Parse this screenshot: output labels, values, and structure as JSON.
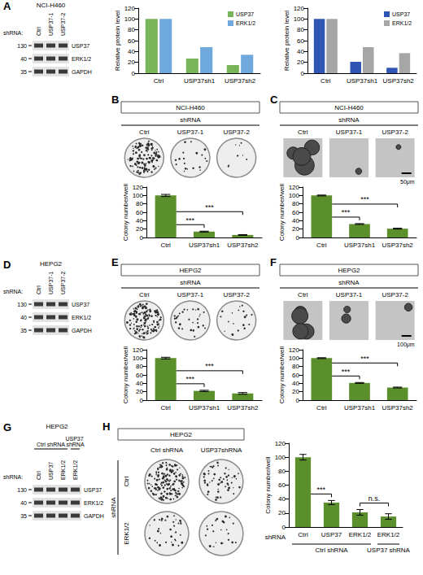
{
  "figure": {
    "blots": [
      {
        "label": "A",
        "title": "NCI-H460",
        "lane_header": "shRNA:",
        "lanes": [
          "Ctrl",
          "USP37-1",
          "USP37-2"
        ],
        "bands": [
          "USP37",
          "ERK1/2",
          "GAPDH"
        ],
        "markers": [
          130,
          40,
          35
        ]
      },
      {
        "label": "D",
        "title": "HEPG2",
        "lane_header": "shRNA:",
        "lanes": [
          "Ctrl",
          "USP37-1",
          "USP37-2"
        ],
        "bands": [
          "USP37",
          "ERK1/2",
          "GAPDH"
        ],
        "markers": [
          130,
          40,
          35
        ]
      },
      {
        "label": "G",
        "title": "HEPG2",
        "lane_header": "shRNA:",
        "groups": [
          {
            "label": "Ctrl shRNA",
            "lanes": [
              "Ctrl",
              "USP37",
              "ERK1/2"
            ]
          },
          {
            "label": "USP37 shRNA",
            "lanes": [
              "ERK1/2"
            ]
          }
        ],
        "bands": [
          "USP37",
          "ERK1/2",
          "GAPDH"
        ],
        "markers": [
          130,
          40,
          35
        ]
      }
    ],
    "images": [
      {
        "label": "B",
        "title": "NCI-H460",
        "header": "shRNA",
        "lanes": [
          "Ctrl",
          "USP37-1",
          "USP37-2"
        ],
        "kind": "plate"
      },
      {
        "label": "C",
        "title": "NCI-H460",
        "header": "shRNA",
        "lanes": [
          "Ctrl",
          "USP37-1",
          "USP37-2"
        ],
        "kind": "soft_agar",
        "scale_bar": "50μm"
      },
      {
        "label": "E",
        "title": "HEPG2",
        "header": "shRNA",
        "lanes": [
          "Ctrl",
          "USP37-1",
          "USP37-2"
        ],
        "kind": "plate"
      },
      {
        "label": "F",
        "title": "HEPG2",
        "header": "shRNA",
        "lanes": [
          "Ctrl",
          "USP37-1",
          "USP37-2"
        ],
        "kind": "soft_agar",
        "scale_bar": "100μm"
      },
      {
        "label": "H",
        "title": "HEPG2",
        "columns": [
          "Ctrl shRNA",
          "USP37shRNA"
        ],
        "row_header": "shRNA",
        "rows": [
          "Ctrl",
          "ERK1/2"
        ],
        "kind": "plate"
      }
    ]
  },
  "chart_data": [
    {
      "type": "bar",
      "categories": [
        "Ctrl",
        "USP37sh1",
        "USP37sh2"
      ],
      "series": [
        {
          "name": "USP37",
          "color": "#78b45a",
          "values": [
            100,
            27,
            15
          ]
        },
        {
          "name": "ERK1/2",
          "color": "#6fa8dc",
          "values": [
            100,
            48,
            34
          ]
        }
      ],
      "ylabel": "Relative protein level",
      "ylim": [
        0,
        120
      ],
      "yticks": [
        0,
        20,
        40,
        60,
        80,
        100,
        120
      ],
      "grid": false,
      "legend": "top-right"
    },
    {
      "type": "bar",
      "categories": [
        "Ctrl",
        "USP37sh1",
        "USP37sh2"
      ],
      "series": [
        {
          "name": "USP37",
          "color": "#2f56b5",
          "values": [
            100,
            21,
            10
          ]
        },
        {
          "name": "ERK1/2",
          "color": "#a6a6a6",
          "values": [
            100,
            48,
            37
          ]
        }
      ],
      "ylabel": "Relative protein level",
      "ylim": [
        0,
        120
      ],
      "yticks": [
        0,
        20,
        40,
        60,
        80,
        100,
        120
      ],
      "grid": false,
      "legend": "top-right"
    },
    {
      "type": "bar",
      "categories": [
        "Ctrl",
        "USP37sh1",
        "USP37sh2"
      ],
      "values": [
        100,
        14,
        6
      ],
      "errors": [
        2.5,
        1,
        0.8
      ],
      "color": "#5b8f2c",
      "ylabel": "Colony number/well",
      "ylim": [
        0,
        120
      ],
      "yticks": [
        0,
        20,
        40,
        60,
        80,
        100,
        120
      ],
      "grid": false,
      "annotations": [
        {
          "text": "***",
          "between": [
            0,
            1
          ]
        },
        {
          "text": "***",
          "between": [
            0,
            2
          ]
        }
      ]
    },
    {
      "type": "bar",
      "categories": [
        "Ctrl",
        "USP37sh1",
        "USP37sh2"
      ],
      "values": [
        100,
        32,
        21
      ],
      "errors": [
        1,
        1,
        1
      ],
      "color": "#5b8f2c",
      "ylabel": "Colony number/well",
      "ylim": [
        0,
        120
      ],
      "yticks": [
        0,
        20,
        40,
        60,
        80,
        100,
        120
      ],
      "grid": false,
      "annotations": [
        {
          "text": "***",
          "between": [
            0,
            1
          ]
        },
        {
          "text": "***",
          "between": [
            0,
            2
          ]
        }
      ]
    },
    {
      "type": "bar",
      "categories": [
        "Ctrl",
        "USP37sh1",
        "USP37sh2"
      ],
      "values": [
        100,
        22,
        16
      ],
      "errors": [
        2,
        1.5,
        2
      ],
      "color": "#5b8f2c",
      "ylabel": "Colony number/well",
      "ylim": [
        0,
        120
      ],
      "yticks": [
        0,
        20,
        40,
        60,
        80,
        100,
        120
      ],
      "grid": false,
      "annotations": [
        {
          "text": "***",
          "between": [
            0,
            1
          ]
        },
        {
          "text": "***",
          "between": [
            0,
            2
          ]
        }
      ]
    },
    {
      "type": "bar",
      "categories": [
        "Ctrl",
        "USP37sh1",
        "USP37sh2"
      ],
      "values": [
        100,
        41,
        30
      ],
      "errors": [
        1,
        1,
        1
      ],
      "color": "#5b8f2c",
      "ylabel": "Colony number/well",
      "ylim": [
        0,
        120
      ],
      "yticks": [
        0,
        20,
        40,
        60,
        80,
        100,
        120
      ],
      "grid": false,
      "annotations": [
        {
          "text": "***",
          "between": [
            0,
            1
          ]
        },
        {
          "text": "***",
          "between": [
            0,
            2
          ]
        }
      ]
    },
    {
      "type": "bar",
      "categories": [
        "Ctrl",
        "USP37",
        "ERK1/2",
        "ERK1/2"
      ],
      "values": [
        100,
        35,
        21,
        15
      ],
      "errors": [
        4,
        3,
        4,
        4
      ],
      "color": "#5b8f2c",
      "xlabel": "shRNA",
      "groups": [
        {
          "label": "Ctrl shRNA",
          "span": [
            0,
            2
          ]
        },
        {
          "label": "USP37 shRNA",
          "span": [
            3,
            3
          ]
        }
      ],
      "ylabel": "Colony number/well",
      "ylim": [
        0,
        120
      ],
      "yticks": [
        0,
        20,
        40,
        60,
        80,
        100,
        120
      ],
      "grid": false,
      "annotations": [
        {
          "text": "***",
          "between": [
            0,
            1
          ]
        },
        {
          "text": "n.s.",
          "between": [
            2,
            3
          ]
        }
      ]
    }
  ]
}
